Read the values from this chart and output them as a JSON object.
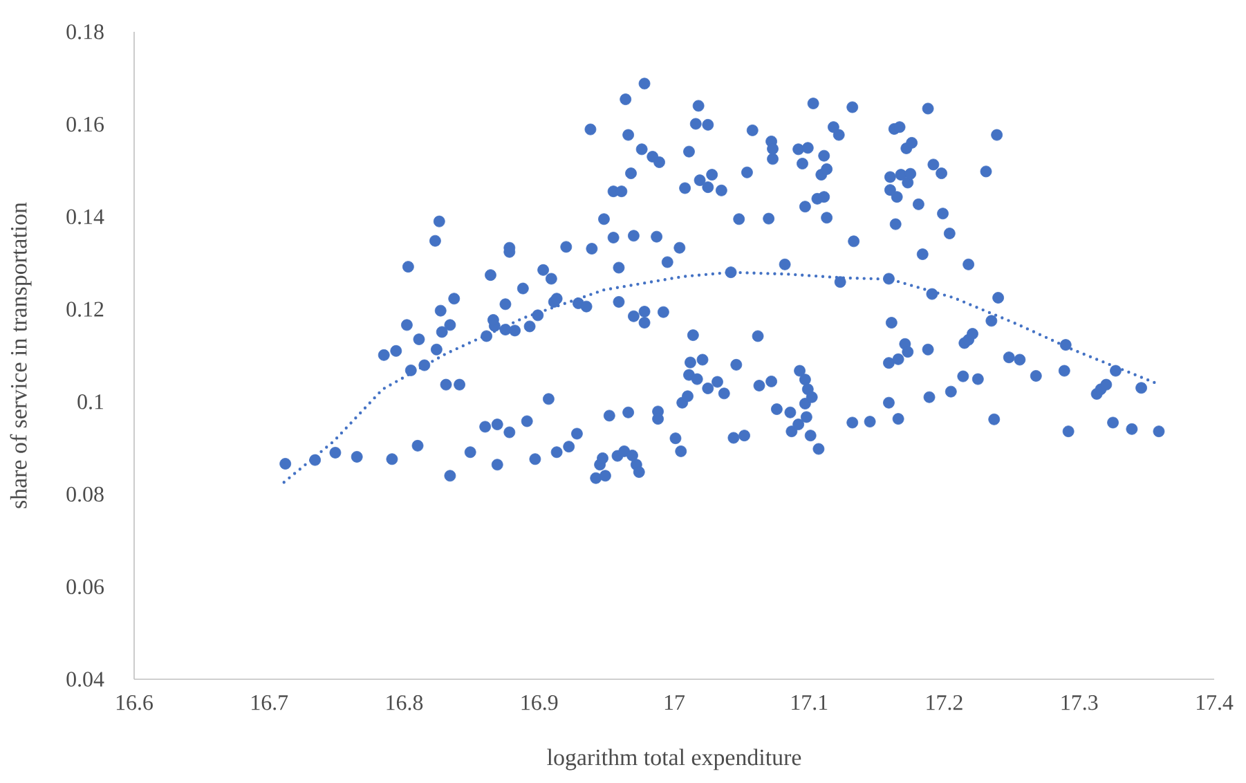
{
  "chart_data": {
    "type": "scatter",
    "xlabel": "logarithm total expenditure",
    "ylabel": "share of service in transportation",
    "xlim": [
      16.6,
      17.4
    ],
    "ylim": [
      0.04,
      0.18
    ],
    "xticks": [
      16.6,
      16.7,
      16.8,
      16.9,
      17,
      17.1,
      17.2,
      17.3,
      17.4
    ],
    "yticks": [
      0.04,
      0.06,
      0.08,
      0.1,
      0.12,
      0.14,
      0.16,
      0.18
    ],
    "marker": "circle",
    "series": [
      {
        "color": "#4472c4",
        "x": [
          16.712,
          16.734,
          16.749,
          16.765,
          16.791,
          16.785,
          16.794,
          16.802,
          16.803,
          16.805,
          16.81,
          16.811,
          16.815,
          16.823,
          16.826,
          16.824,
          16.827,
          16.828,
          16.831,
          16.834,
          16.834,
          16.837,
          16.841,
          16.849,
          16.86,
          16.861,
          16.864,
          16.867,
          16.866,
          16.869,
          16.869,
          16.875,
          16.875,
          16.878,
          16.878,
          16.878,
          16.882,
          16.888,
          16.891,
          16.893,
          16.897,
          16.899,
          16.903,
          16.907,
          16.909,
          16.911,
          16.913,
          16.913,
          16.92,
          16.922,
          16.928,
          16.929,
          16.935,
          16.938,
          16.939,
          16.942,
          16.945,
          16.947,
          16.948,
          16.949,
          16.952,
          16.955,
          16.955,
          16.958,
          16.959,
          16.959,
          16.961,
          16.963,
          16.964,
          16.966,
          16.966,
          16.968,
          16.969,
          16.97,
          16.97,
          16.972,
          16.974,
          16.976,
          16.978,
          16.978,
          16.978,
          16.984,
          16.987,
          16.988,
          16.988,
          16.989,
          16.992,
          16.995,
          17.001,
          17.004,
          17.005,
          17.006,
          17.008,
          17.01,
          17.011,
          17.011,
          17.012,
          17.014,
          17.016,
          17.017,
          17.018,
          17.019,
          17.021,
          17.025,
          17.025,
          17.025,
          17.028,
          17.032,
          17.035,
          17.037,
          17.042,
          17.044,
          17.046,
          17.048,
          17.052,
          17.054,
          17.058,
          17.062,
          17.063,
          17.07,
          17.072,
          17.072,
          17.073,
          17.073,
          17.076,
          17.082,
          17.086,
          17.087,
          17.092,
          17.093,
          17.092,
          17.095,
          17.097,
          17.097,
          17.099,
          17.097,
          17.098,
          17.099,
          17.101,
          17.102,
          17.103,
          17.106,
          17.107,
          17.109,
          17.111,
          17.111,
          17.113,
          17.113,
          17.118,
          17.122,
          17.123,
          17.132,
          17.132,
          17.133,
          17.145,
          17.159,
          17.159,
          17.159,
          17.16,
          17.16,
          17.161,
          17.163,
          17.164,
          17.165,
          17.166,
          17.166,
          17.167,
          17.168,
          17.171,
          17.172,
          17.173,
          17.173,
          17.175,
          17.176,
          17.181,
          17.184,
          17.188,
          17.188,
          17.189,
          17.191,
          17.192,
          17.198,
          17.199,
          17.204,
          17.205,
          17.214,
          17.215,
          17.218,
          17.218,
          17.221,
          17.225,
          17.231,
          17.235,
          17.237,
          17.239,
          17.24,
          17.248,
          17.256,
          17.268,
          17.289,
          17.29,
          17.292,
          17.313,
          17.316,
          17.32,
          17.325,
          17.327,
          17.339,
          17.346,
          17.359
        ],
        "values": [
          0.0866,
          0.0874,
          0.089,
          0.0881,
          0.0876,
          0.1101,
          0.111,
          0.1166,
          0.1292,
          0.1068,
          0.0905,
          0.1135,
          0.1079,
          0.1348,
          0.139,
          0.1113,
          0.1197,
          0.1151,
          0.1037,
          0.1166,
          0.084,
          0.1223,
          0.1037,
          0.0891,
          0.0946,
          0.1142,
          0.1274,
          0.1164,
          0.1177,
          0.0951,
          0.0864,
          0.1156,
          0.1211,
          0.1333,
          0.1324,
          0.0934,
          0.1154,
          0.1245,
          0.0958,
          0.1163,
          0.0876,
          0.1187,
          0.1285,
          0.1006,
          0.1266,
          0.1216,
          0.1223,
          0.0891,
          0.1335,
          0.0903,
          0.0931,
          0.1213,
          0.1206,
          0.1589,
          0.1331,
          0.0835,
          0.0864,
          0.0878,
          0.1395,
          0.084,
          0.097,
          0.1355,
          0.1455,
          0.0883,
          0.129,
          0.1216,
          0.1455,
          0.0893,
          0.1654,
          0.0977,
          0.1577,
          0.1494,
          0.0884,
          0.1359,
          0.1185,
          0.0864,
          0.0848,
          0.1546,
          0.1688,
          0.1195,
          0.1171,
          0.153,
          0.1357,
          0.0979,
          0.0963,
          0.1518,
          0.1194,
          0.1302,
          0.0921,
          0.1333,
          0.0893,
          0.0998,
          0.1462,
          0.1012,
          0.1541,
          0.1058,
          0.1085,
          0.1144,
          0.1601,
          0.1049,
          0.164,
          0.1479,
          0.1091,
          0.1599,
          0.1464,
          0.1029,
          0.1491,
          0.1043,
          0.1457,
          0.1018,
          0.128,
          0.0922,
          0.108,
          0.1395,
          0.0927,
          0.1496,
          0.1587,
          0.1142,
          0.1035,
          0.1396,
          0.1044,
          0.1563,
          0.1525,
          0.1547,
          0.0984,
          0.1297,
          0.0977,
          0.0936,
          0.1546,
          0.1067,
          0.0951,
          0.1515,
          0.1048,
          0.0996,
          0.1549,
          0.1422,
          0.0967,
          0.1027,
          0.0927,
          0.101,
          0.1645,
          0.1439,
          0.0898,
          0.1491,
          0.1443,
          0.1532,
          0.1503,
          0.1398,
          0.1594,
          0.1577,
          0.1259,
          0.1637,
          0.0955,
          0.1347,
          0.0957,
          0.1266,
          0.1084,
          0.0998,
          0.1486,
          0.1458,
          0.1171,
          0.159,
          0.1384,
          0.1443,
          0.1092,
          0.0963,
          0.1594,
          0.1491,
          0.1125,
          0.1548,
          0.1474,
          0.1108,
          0.1493,
          0.156,
          0.1427,
          0.1319,
          0.1634,
          0.1113,
          0.101,
          0.1233,
          0.1513,
          0.1494,
          0.1407,
          0.1364,
          0.1022,
          0.1055,
          0.1127,
          0.1297,
          0.1134,
          0.1147,
          0.1049,
          0.1498,
          0.1175,
          0.0962,
          0.1577,
          0.1225,
          0.1096,
          0.1091,
          0.1056,
          0.1067,
          0.1123,
          0.0936,
          0.1017,
          0.1027,
          0.1037,
          0.0955,
          0.1067,
          0.0941,
          0.103,
          0.0936
        ]
      },
      {
        "type": "line",
        "color": "#4472c4",
        "line_style": "dotted",
        "marker": "none",
        "x": [
          16.711,
          16.748,
          16.784,
          16.831,
          16.889,
          16.948,
          17.007,
          17.042,
          17.084,
          17.125,
          17.16,
          17.207,
          17.254,
          17.295,
          17.358
        ],
        "values": [
          0.0826,
          0.0915,
          0.1027,
          0.1104,
          0.1182,
          0.1242,
          0.1271,
          0.128,
          0.1276,
          0.1268,
          0.1265,
          0.1225,
          0.1168,
          0.1113,
          0.1039
        ]
      }
    ]
  }
}
